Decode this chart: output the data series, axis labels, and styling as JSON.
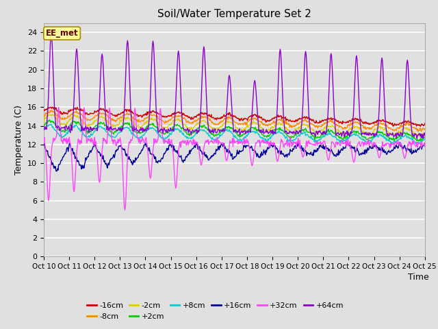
{
  "title": "Soil/Water Temperature Set 2",
  "xlabel": "Time",
  "ylabel": "Temperature (C)",
  "ylim": [
    0,
    25
  ],
  "yticks": [
    0,
    2,
    4,
    6,
    8,
    10,
    12,
    14,
    16,
    18,
    20,
    22,
    24
  ],
  "bg_color": "#e0e0e0",
  "series_colors": {
    "-16cm": "#cc0000",
    "-8cm": "#ff8800",
    "-2cm": "#ddcc00",
    "+2cm": "#00cc00",
    "+8cm": "#00cccc",
    "+16cm": "#000099",
    "+32cm": "#ff44ff",
    "+64cm": "#8800cc"
  },
  "xtick_labels": [
    "Oct 10",
    "Oct 11",
    "Oct 12",
    "Oct 13",
    "Oct 14",
    "Oct 15",
    "Oct 16",
    "Oct 17",
    "Oct 18",
    "Oct 19",
    "Oct 20",
    "Oct 21",
    "Oct 22",
    "Oct 23",
    "Oct 24",
    "Oct 25"
  ],
  "annotation_text": "EE_met"
}
